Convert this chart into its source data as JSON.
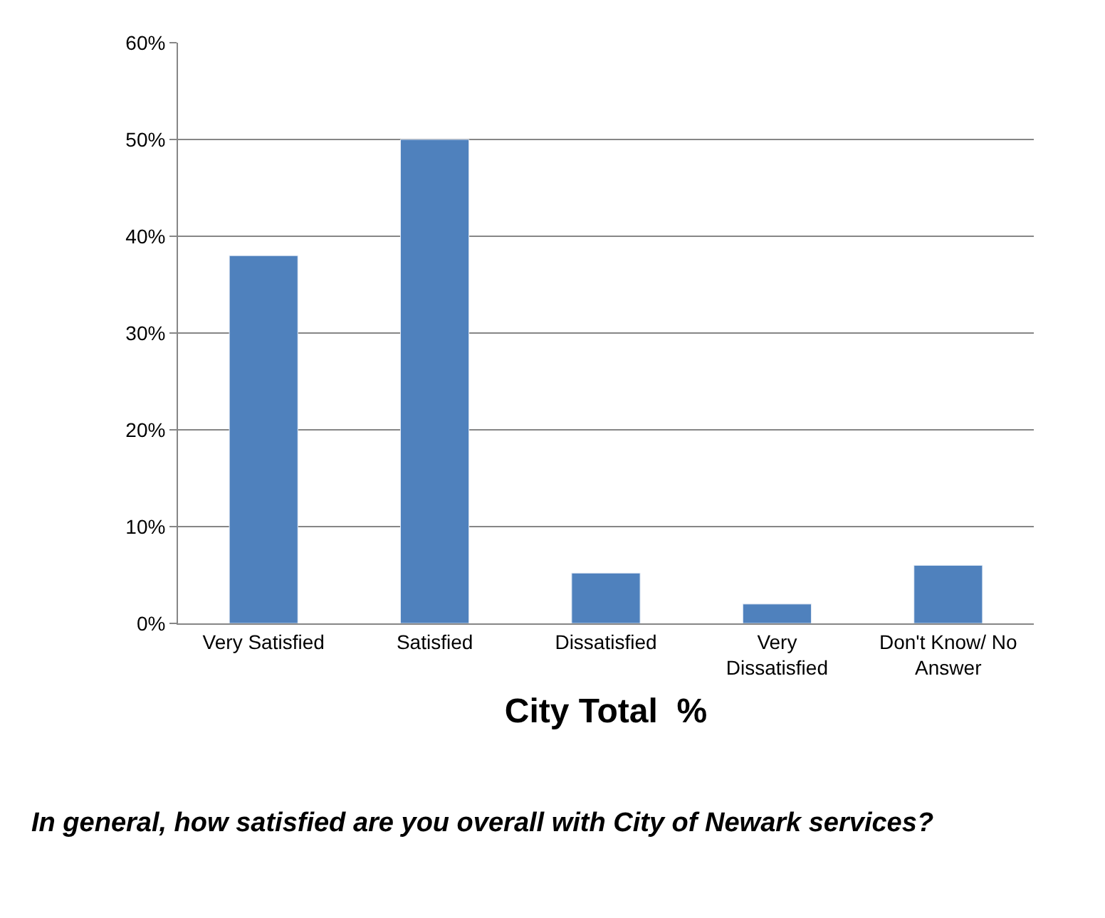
{
  "chart_data": {
    "type": "bar",
    "categories": [
      "Very Satisfied",
      "Satisfied",
      "Dissatisfied",
      "Very Dissatisfied",
      "Don't Know/ No Answer"
    ],
    "values": [
      38,
      50,
      5.2,
      2,
      6
    ],
    "color": "#4f81bd",
    "xlabel": "City Total  %",
    "ylim": [
      0,
      60
    ],
    "yticks": [
      {
        "value": 0,
        "label": "0%"
      },
      {
        "value": 10,
        "label": "10%"
      },
      {
        "value": 20,
        "label": "20%"
      },
      {
        "value": 30,
        "label": "30%"
      },
      {
        "value": 40,
        "label": "40%"
      },
      {
        "value": 50,
        "label": "50%"
      },
      {
        "value": 60,
        "label": "60%"
      }
    ],
    "grid": "y",
    "legend": false,
    "annotations": [
      "In general, how satisfied are you overall with City of Newark services?"
    ]
  }
}
